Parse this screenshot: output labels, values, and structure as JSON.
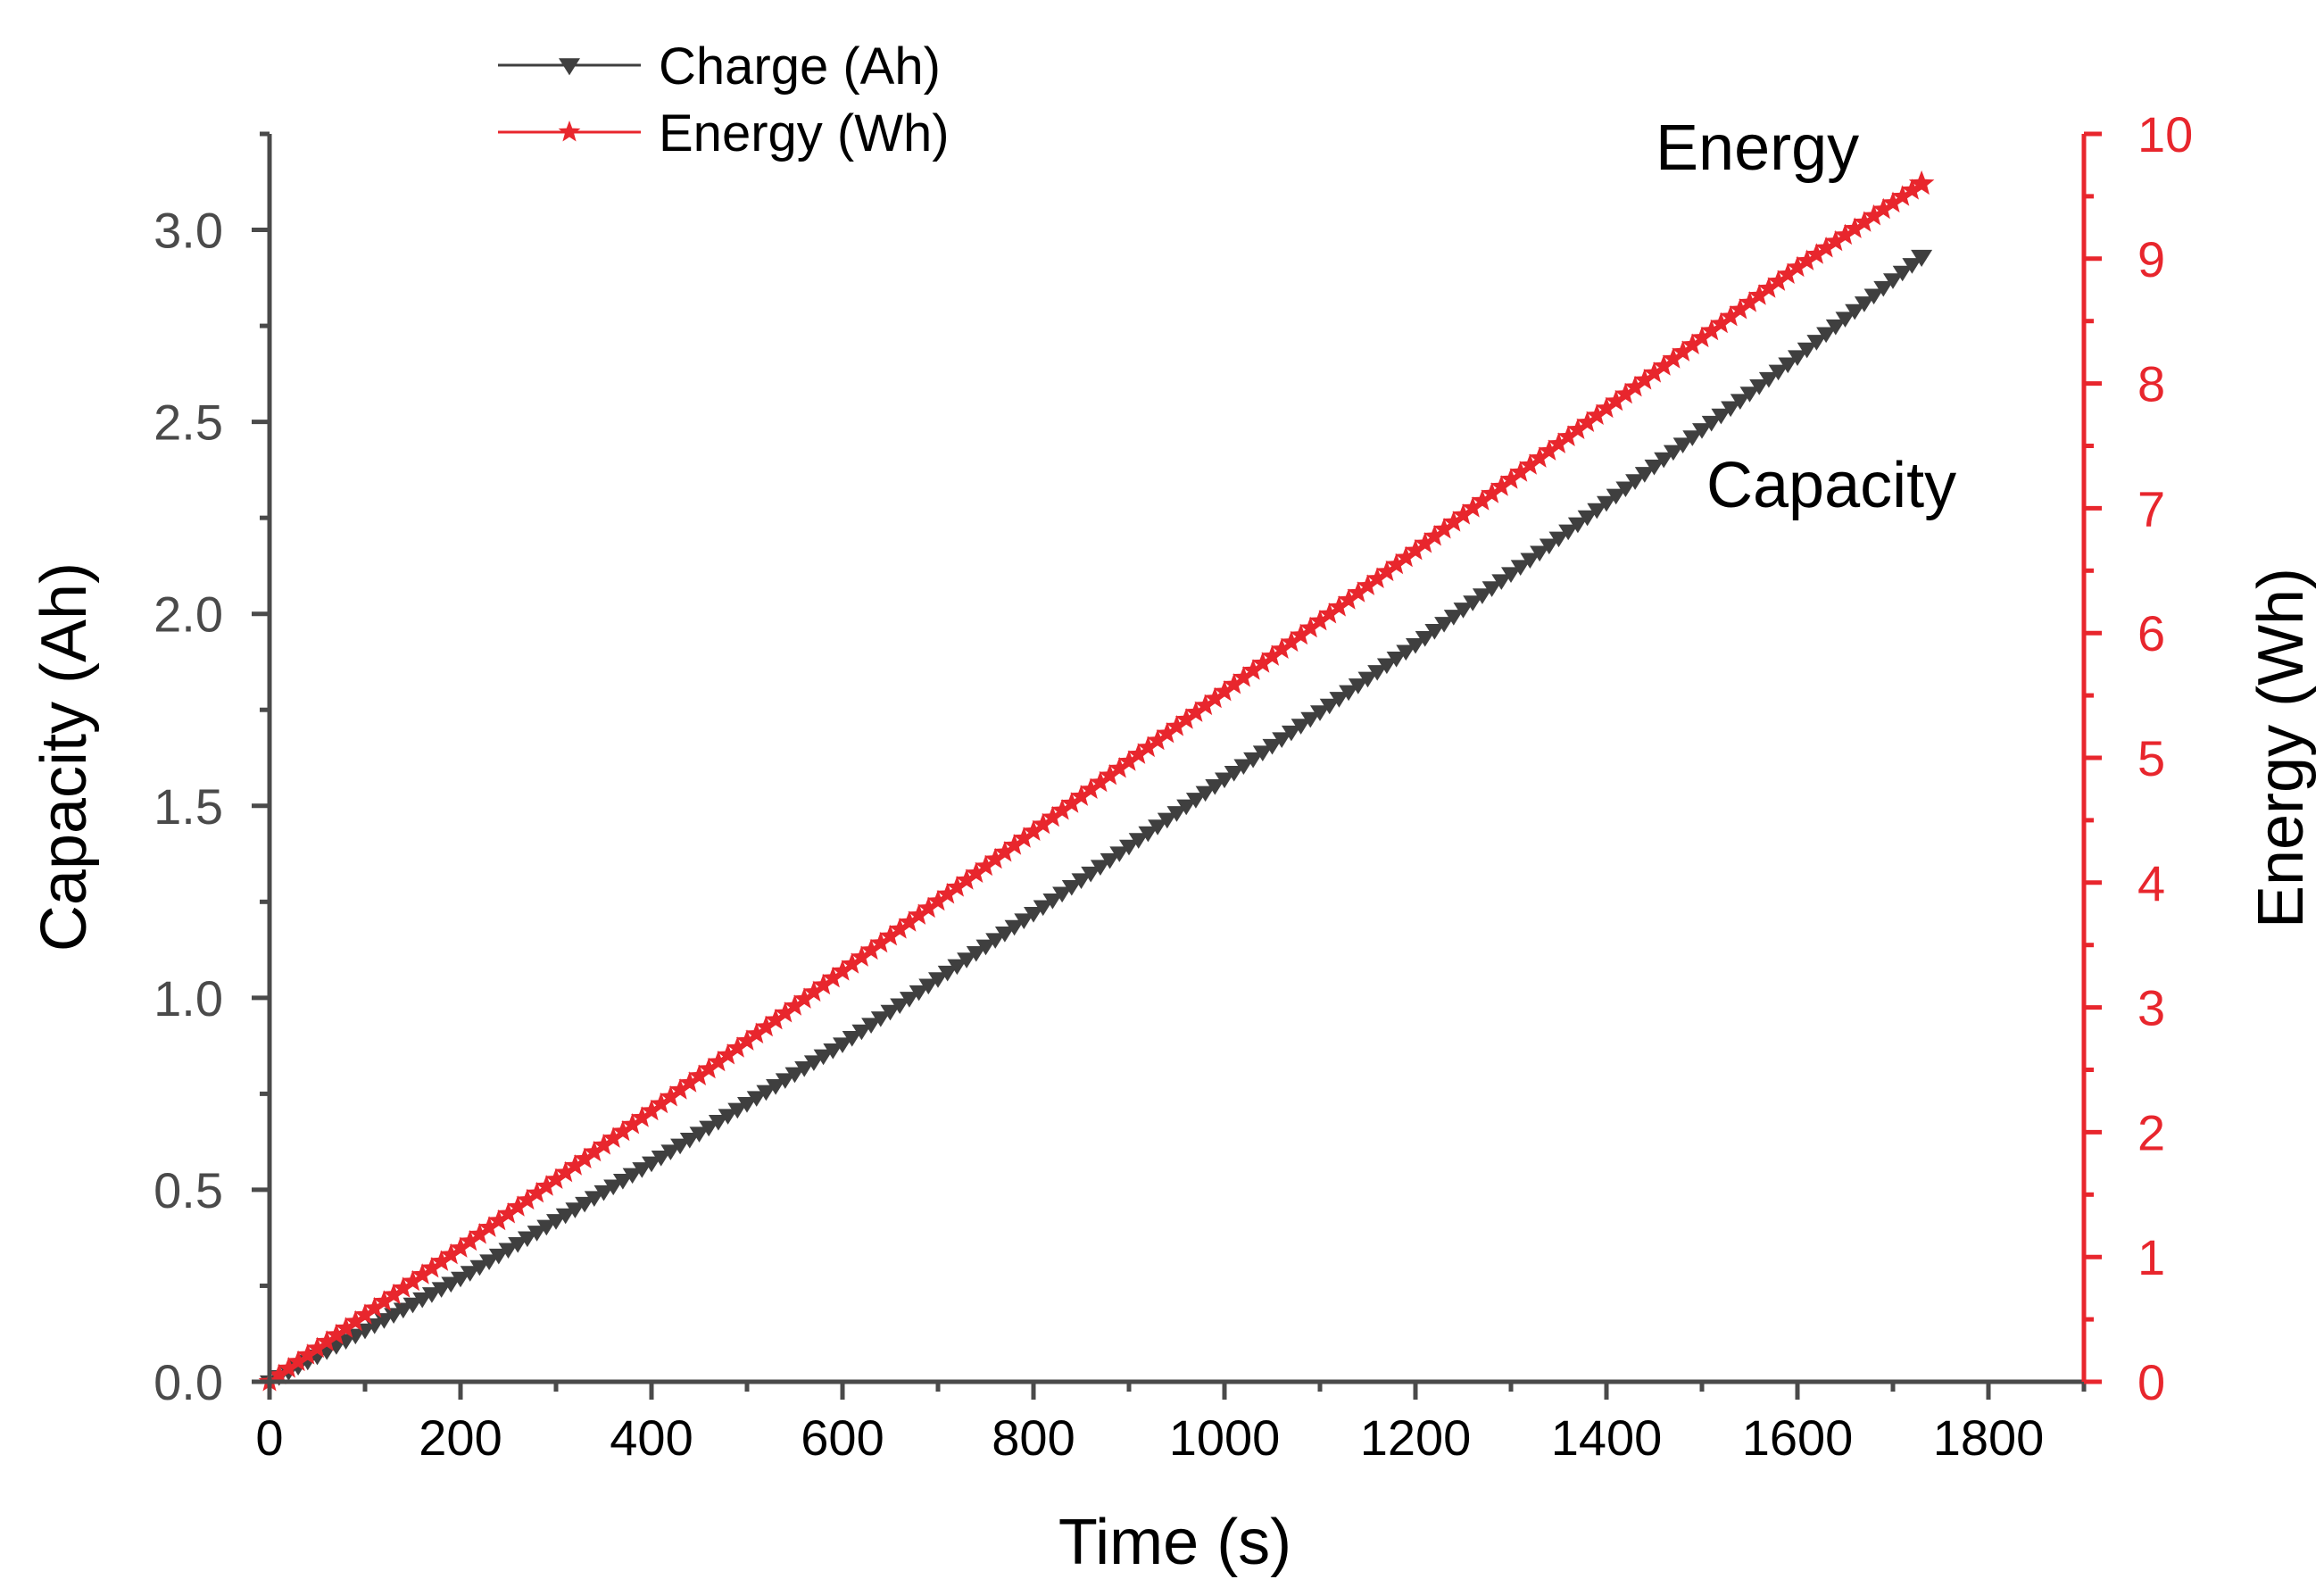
{
  "chart_data": {
    "type": "line",
    "x": {
      "label": "Time (s)",
      "lim": [
        0,
        1900
      ],
      "major_ticks": [
        0,
        200,
        400,
        600,
        800,
        1000,
        1200,
        1400,
        1600,
        1800
      ],
      "minor_step": 100
    },
    "y_left": {
      "label": "Capacity (Ah)",
      "lim": [
        0,
        3.25
      ],
      "major_ticks": [
        "0.0",
        "0.5",
        "1.0",
        "1.5",
        "2.0",
        "2.5",
        "3.0"
      ],
      "minor_step": 0.25
    },
    "y_right": {
      "label": "Energy (Wh)",
      "lim": [
        0,
        10
      ],
      "major_ticks": [
        "0",
        "1",
        "2",
        "3",
        "4",
        "5",
        "6",
        "7",
        "8",
        "9",
        "10"
      ],
      "minor_step": 0.5
    },
    "series": [
      {
        "name": "Charge (Ah)",
        "axis": "left",
        "color": "#3f3f3f",
        "marker": "triangle-down",
        "points": [
          [
            0,
            0
          ],
          [
            200,
            0.27
          ],
          [
            400,
            0.57
          ],
          [
            600,
            0.88
          ],
          [
            800,
            1.22
          ],
          [
            1000,
            1.57
          ],
          [
            1200,
            1.92
          ],
          [
            1400,
            2.29
          ],
          [
            1600,
            2.67
          ],
          [
            1730,
            2.93
          ]
        ]
      },
      {
        "name": "Energy (Wh)",
        "axis": "right",
        "color": "#e8262d",
        "marker": "star",
        "points": [
          [
            0,
            0
          ],
          [
            200,
            1.07
          ],
          [
            400,
            2.17
          ],
          [
            600,
            3.29
          ],
          [
            800,
            4.41
          ],
          [
            1000,
            5.53
          ],
          [
            1200,
            6.66
          ],
          [
            1400,
            7.8
          ],
          [
            1600,
            8.93
          ],
          [
            1730,
            9.6
          ]
        ]
      }
    ],
    "annotations": [
      {
        "text": "Energy",
        "near": "end of Energy (Wh) series"
      },
      {
        "text": "Capacity",
        "near": "below-right of Charge (Ah) series"
      }
    ],
    "legend": {
      "position": "top-left",
      "entries": [
        "Charge (Ah)",
        "Energy (Wh)"
      ]
    },
    "grid": false
  }
}
